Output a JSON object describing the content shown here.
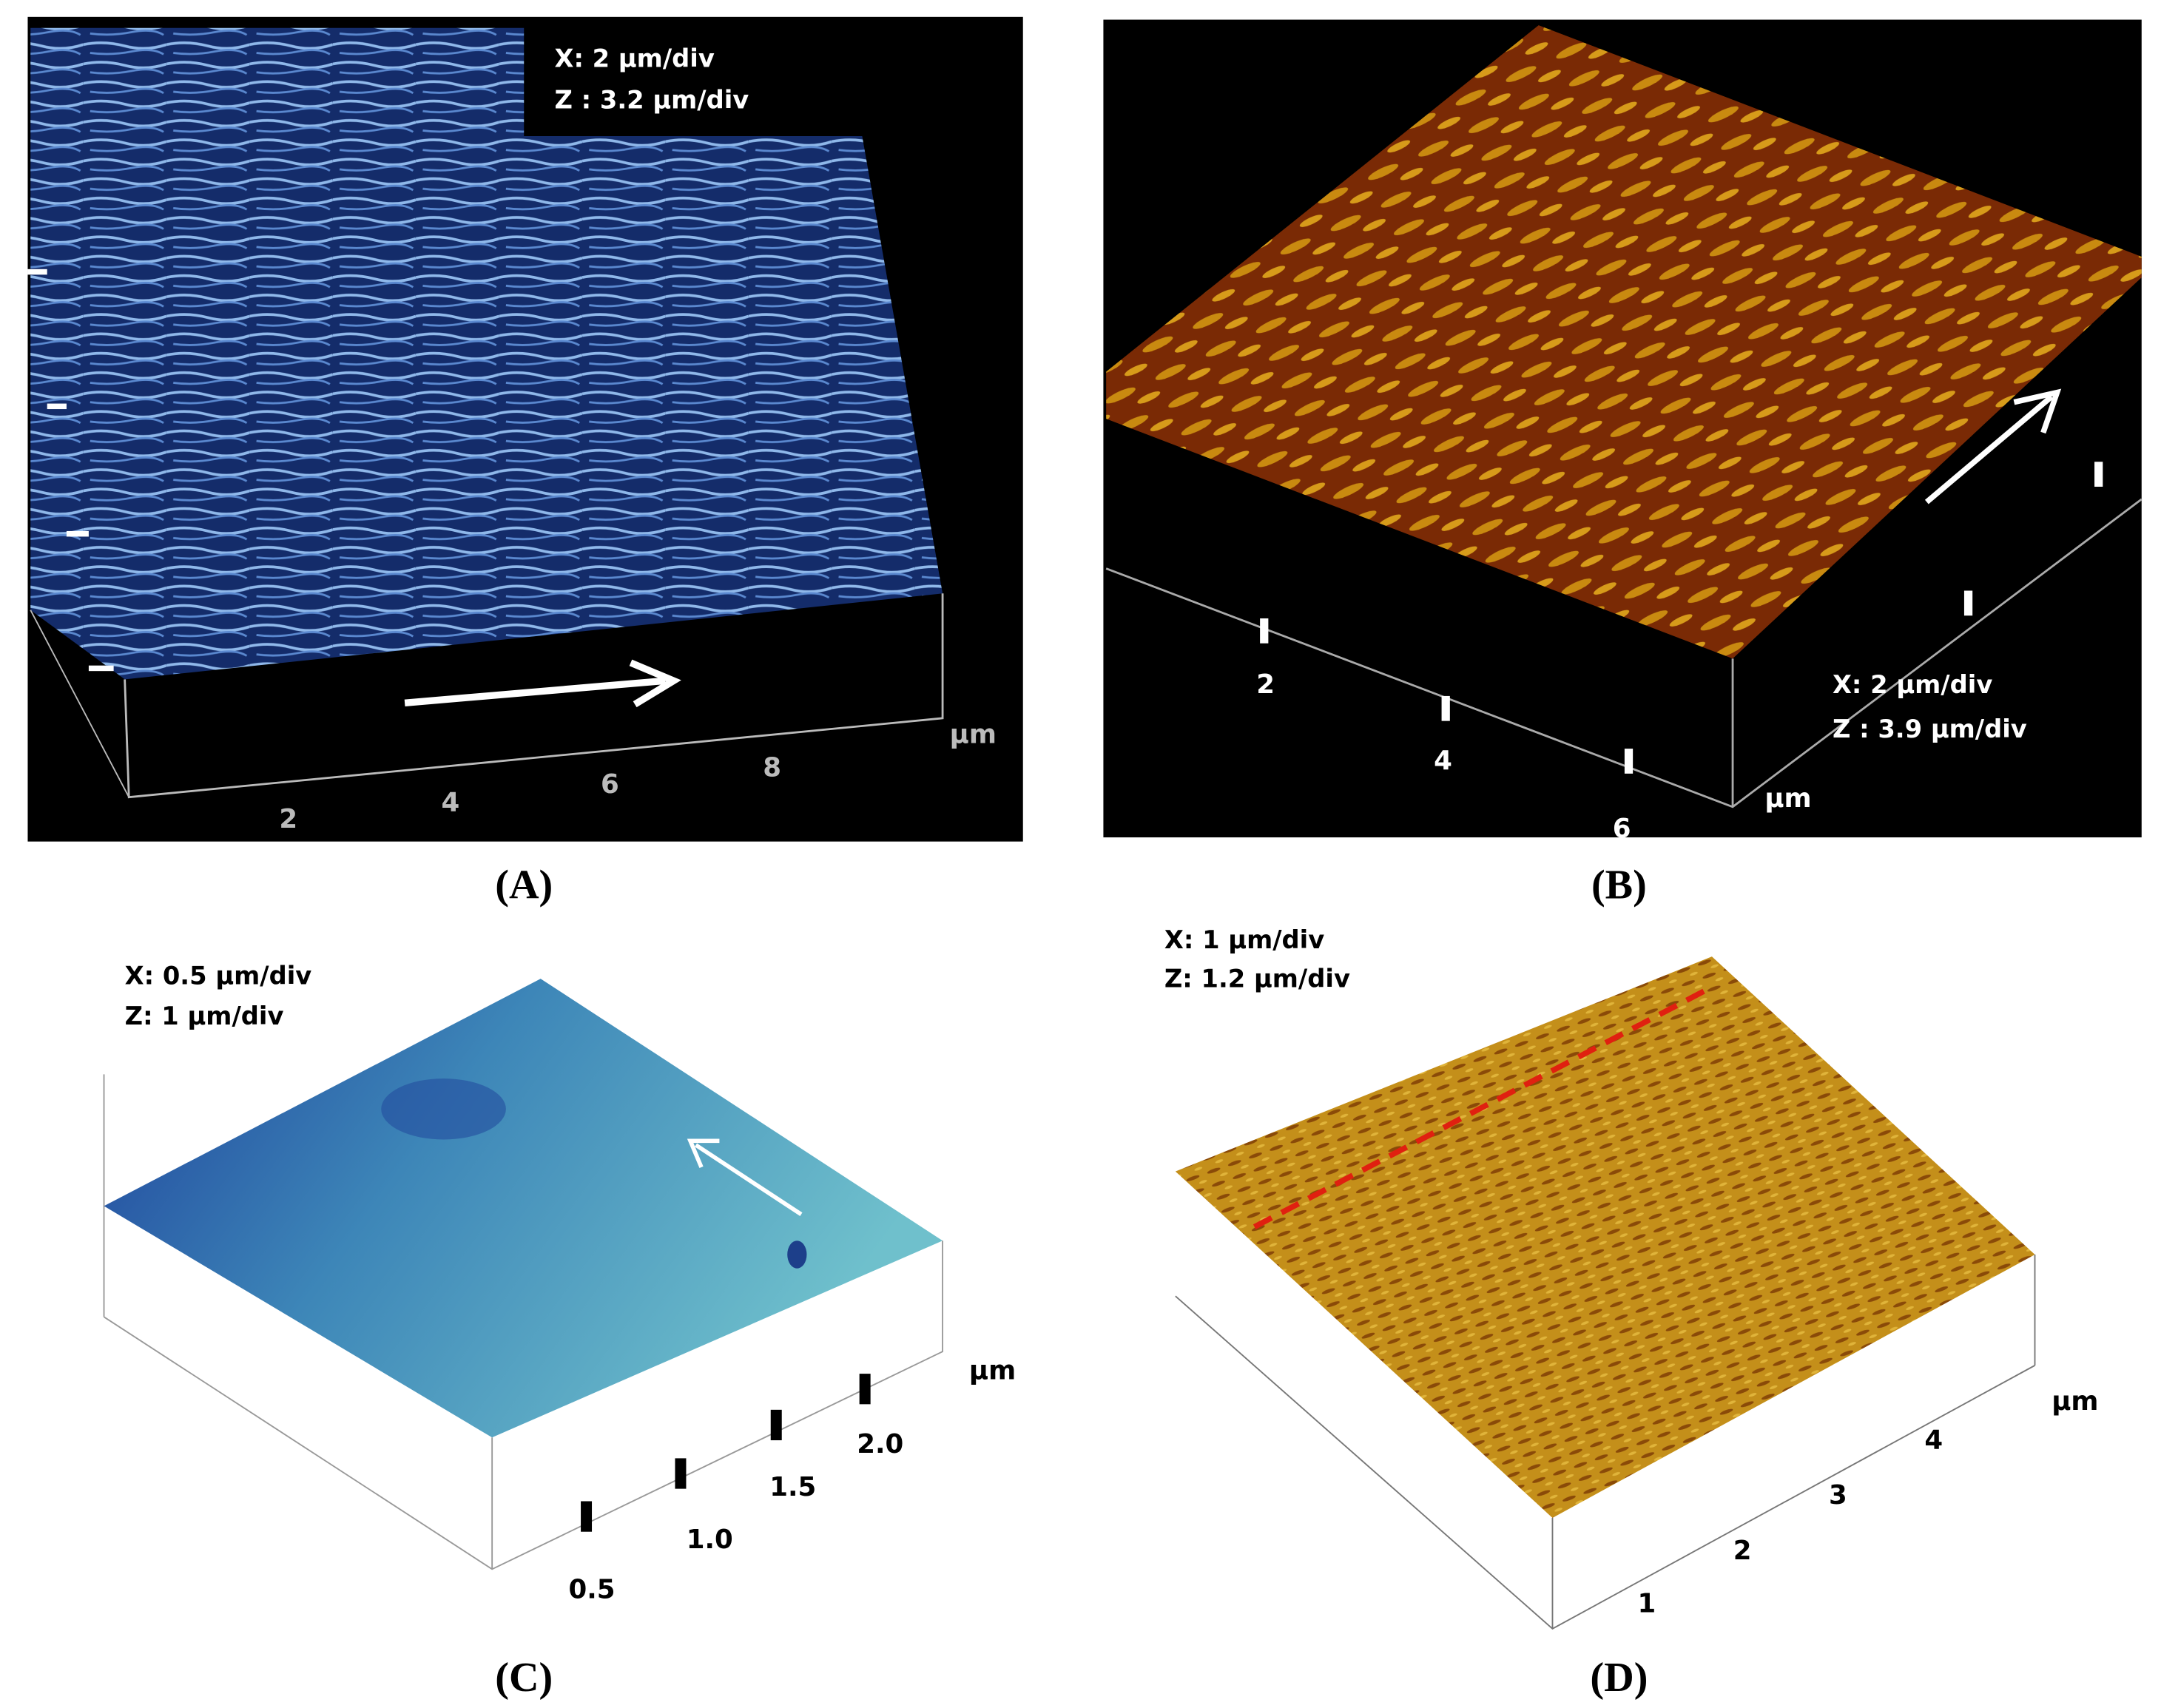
{
  "panels": [
    {
      "label": "(A)",
      "scale": [
        "X: 2 µm/div",
        "Z : 3.2 µm/div"
      ],
      "ticks": [
        "2",
        "4",
        "6",
        "8"
      ],
      "unit": "µm"
    },
    {
      "label": "(B)",
      "scale": [
        "X: 2 µm/div",
        "Z : 3.9 µm/div"
      ],
      "ticks": [
        "2",
        "4",
        "6"
      ],
      "unit": "µm"
    },
    {
      "label": "(C)",
      "scale": [
        "X: 0.5 µm/div",
        "Z: 1 µm/div"
      ],
      "ticks": [
        "0.5",
        "1.0",
        "1.5",
        "2.0"
      ],
      "unit": "µm"
    },
    {
      "label": "(D)",
      "scale": [
        "X: 1 µm/div",
        "Z: 1.2 µm/div"
      ],
      "ticks": [
        "1",
        "2",
        "3",
        "4"
      ],
      "unit": "µm"
    }
  ]
}
